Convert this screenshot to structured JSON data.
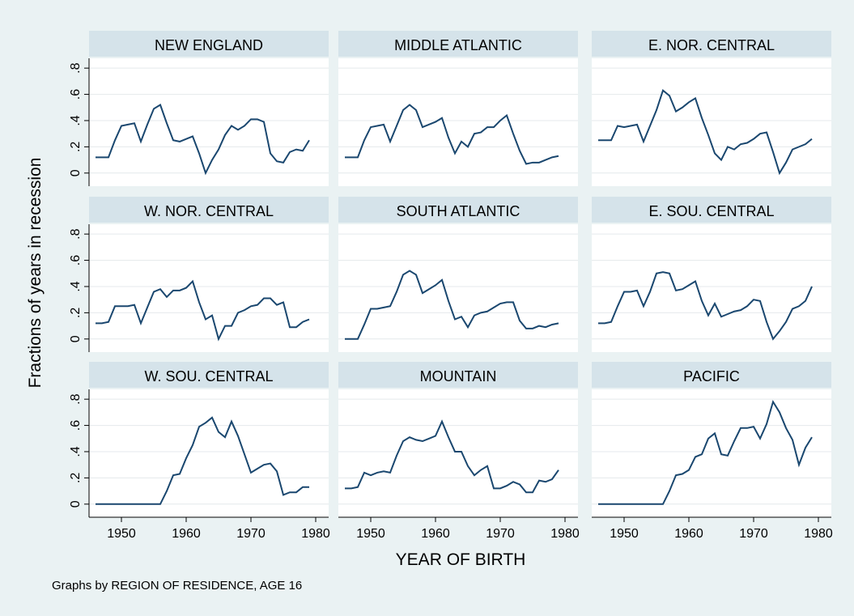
{
  "chart_data": {
    "type": "line",
    "y_label": "Fractions of years in recession",
    "x_label": "YEAR OF BIRTH",
    "note": "Graphs by REGION OF RESIDENCE, AGE 16",
    "color": "#1a476f",
    "grid": true,
    "xlim": [
      1945,
      1982
    ],
    "xticks": [
      1950,
      1960,
      1970,
      1980
    ],
    "ylim": [
      -0.1,
      0.875
    ],
    "yticks": [
      0,
      {
        "value": 0.2,
        "label": ".2"
      },
      {
        "value": 0.4,
        "label": ".4"
      },
      {
        "value": 0.6,
        "label": ".6"
      },
      {
        "value": 0.8,
        "label": ".8"
      }
    ],
    "x": [
      1946,
      1947,
      1948,
      1949,
      1950,
      1951,
      1952,
      1953,
      1954,
      1955,
      1956,
      1957,
      1958,
      1959,
      1960,
      1961,
      1962,
      1963,
      1964,
      1965,
      1966,
      1967,
      1968,
      1969,
      1970,
      1971,
      1972,
      1973,
      1974,
      1975,
      1976,
      1977,
      1978,
      1979
    ],
    "panels": [
      {
        "title": "NEW ENGLAND",
        "values": [
          0.12,
          0.12,
          0.12,
          0.25,
          0.36,
          0.37,
          0.38,
          0.24,
          0.37,
          0.49,
          0.52,
          0.38,
          0.25,
          0.24,
          0.26,
          0.28,
          0.15,
          0,
          0.1,
          0.18,
          0.29,
          0.36,
          0.33,
          0.36,
          0.41,
          0.41,
          0.39,
          0.15,
          0.09,
          0.08,
          0.16,
          0.18,
          0.17,
          0.25
        ]
      },
      {
        "title": "MIDDLE ATLANTIC",
        "values": [
          0.12,
          0.12,
          0.12,
          0.25,
          0.35,
          0.36,
          0.37,
          0.24,
          0.36,
          0.48,
          0.52,
          0.48,
          0.35,
          0.37,
          0.39,
          0.42,
          0.27,
          0.15,
          0.24,
          0.2,
          0.3,
          0.31,
          0.35,
          0.35,
          0.4,
          0.44,
          0.3,
          0.17,
          0.07,
          0.08,
          0.08,
          0.1,
          0.12,
          0.13
        ]
      },
      {
        "title": "E. NOR. CENTRAL",
        "values": [
          0.25,
          0.25,
          0.25,
          0.36,
          0.35,
          0.36,
          0.37,
          0.24,
          0.36,
          0.48,
          0.63,
          0.59,
          0.47,
          0.5,
          0.54,
          0.57,
          0.42,
          0.29,
          0.15,
          0.1,
          0.2,
          0.18,
          0.22,
          0.23,
          0.26,
          0.3,
          0.31,
          0.16,
          0,
          0.08,
          0.18,
          0.2,
          0.22,
          0.26
        ]
      },
      {
        "title": "W. NOR. CENTRAL",
        "values": [
          0.12,
          0.12,
          0.13,
          0.25,
          0.25,
          0.25,
          0.26,
          0.12,
          0.24,
          0.36,
          0.38,
          0.32,
          0.37,
          0.37,
          0.39,
          0.44,
          0.28,
          0.15,
          0.18,
          0,
          0.1,
          0.1,
          0.2,
          0.22,
          0.25,
          0.26,
          0.31,
          0.31,
          0.26,
          0.28,
          0.09,
          0.09,
          0.13,
          0.15
        ]
      },
      {
        "title": "SOUTH ATLANTIC",
        "values": [
          0,
          0,
          0,
          0.11,
          0.23,
          0.23,
          0.24,
          0.25,
          0.36,
          0.49,
          0.52,
          0.49,
          0.35,
          0.38,
          0.41,
          0.45,
          0.29,
          0.15,
          0.17,
          0.09,
          0.18,
          0.2,
          0.21,
          0.24,
          0.27,
          0.28,
          0.28,
          0.14,
          0.08,
          0.08,
          0.1,
          0.09,
          0.11,
          0.12
        ]
      },
      {
        "title": "E. SOU. CENTRAL",
        "values": [
          0.12,
          0.12,
          0.13,
          0.25,
          0.36,
          0.36,
          0.37,
          0.25,
          0.36,
          0.5,
          0.51,
          0.5,
          0.37,
          0.38,
          0.41,
          0.44,
          0.29,
          0.18,
          0.27,
          0.17,
          0.19,
          0.21,
          0.22,
          0.25,
          0.3,
          0.29,
          0.13,
          0,
          0.06,
          0.13,
          0.23,
          0.25,
          0.29,
          0.4
        ]
      },
      {
        "title": "W. SOU. CENTRAL",
        "values": [
          0,
          0,
          0,
          0,
          0,
          0,
          0,
          0,
          0,
          0,
          0,
          0.1,
          0.22,
          0.23,
          0.35,
          0.45,
          0.59,
          0.62,
          0.66,
          0.55,
          0.51,
          0.63,
          0.52,
          0.38,
          0.24,
          0.27,
          0.3,
          0.31,
          0.25,
          0.07,
          0.09,
          0.09,
          0.13,
          0.13
        ]
      },
      {
        "title": "MOUNTAIN",
        "values": [
          0.12,
          0.12,
          0.13,
          0.24,
          0.22,
          0.24,
          0.25,
          0.24,
          0.37,
          0.48,
          0.51,
          0.49,
          0.48,
          0.5,
          0.52,
          0.63,
          0.51,
          0.4,
          0.4,
          0.29,
          0.22,
          0.26,
          0.29,
          0.12,
          0.12,
          0.14,
          0.17,
          0.15,
          0.09,
          0.09,
          0.18,
          0.17,
          0.19,
          0.26
        ]
      },
      {
        "title": "PACIFIC",
        "values": [
          0,
          0,
          0,
          0,
          0,
          0,
          0,
          0,
          0,
          0,
          0,
          0.1,
          0.22,
          0.23,
          0.26,
          0.36,
          0.38,
          0.5,
          0.54,
          0.38,
          0.37,
          0.48,
          0.58,
          0.58,
          0.59,
          0.5,
          0.61,
          0.78,
          0.7,
          0.58,
          0.49,
          0.3,
          0.43,
          0.51
        ]
      }
    ]
  }
}
